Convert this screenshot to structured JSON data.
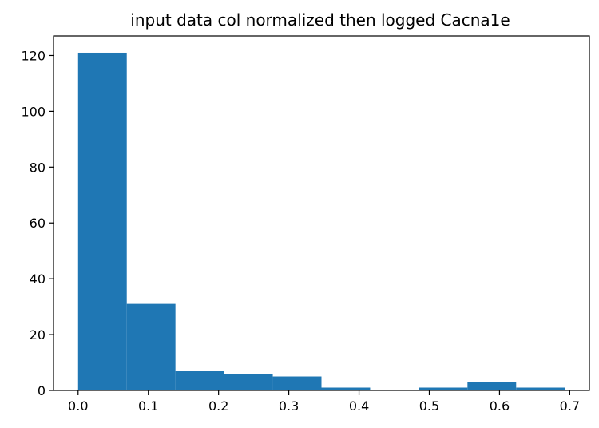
{
  "chart_data": {
    "type": "bar",
    "title": "input data col normalized then logged Cacna1e",
    "xlabel": "",
    "ylabel": "",
    "bar_color": "#1f77b4",
    "xlim": [
      -0.035,
      0.728
    ],
    "ylim": [
      0,
      127
    ],
    "bins": [
      {
        "x0": 0.0,
        "x1": 0.0693,
        "count": 121
      },
      {
        "x0": 0.0693,
        "x1": 0.1386,
        "count": 31
      },
      {
        "x0": 0.1386,
        "x1": 0.2079,
        "count": 7
      },
      {
        "x0": 0.2079,
        "x1": 0.2772,
        "count": 6
      },
      {
        "x0": 0.2772,
        "x1": 0.3465,
        "count": 5
      },
      {
        "x0": 0.3465,
        "x1": 0.4158,
        "count": 1
      },
      {
        "x0": 0.4158,
        "x1": 0.4851,
        "count": 0
      },
      {
        "x0": 0.4851,
        "x1": 0.5544,
        "count": 1
      },
      {
        "x0": 0.5544,
        "x1": 0.6237,
        "count": 3
      },
      {
        "x0": 0.6237,
        "x1": 0.693,
        "count": 1
      }
    ],
    "x_ticks": [
      0.0,
      0.1,
      0.2,
      0.3,
      0.4,
      0.5,
      0.6,
      0.7
    ],
    "x_tick_labels": [
      "0.0",
      "0.1",
      "0.2",
      "0.3",
      "0.4",
      "0.5",
      "0.6",
      "0.7"
    ],
    "y_ticks": [
      0,
      20,
      40,
      60,
      80,
      100,
      120
    ],
    "y_tick_labels": [
      "0",
      "20",
      "40",
      "60",
      "80",
      "100",
      "120"
    ],
    "grid": false,
    "legend": "none"
  }
}
